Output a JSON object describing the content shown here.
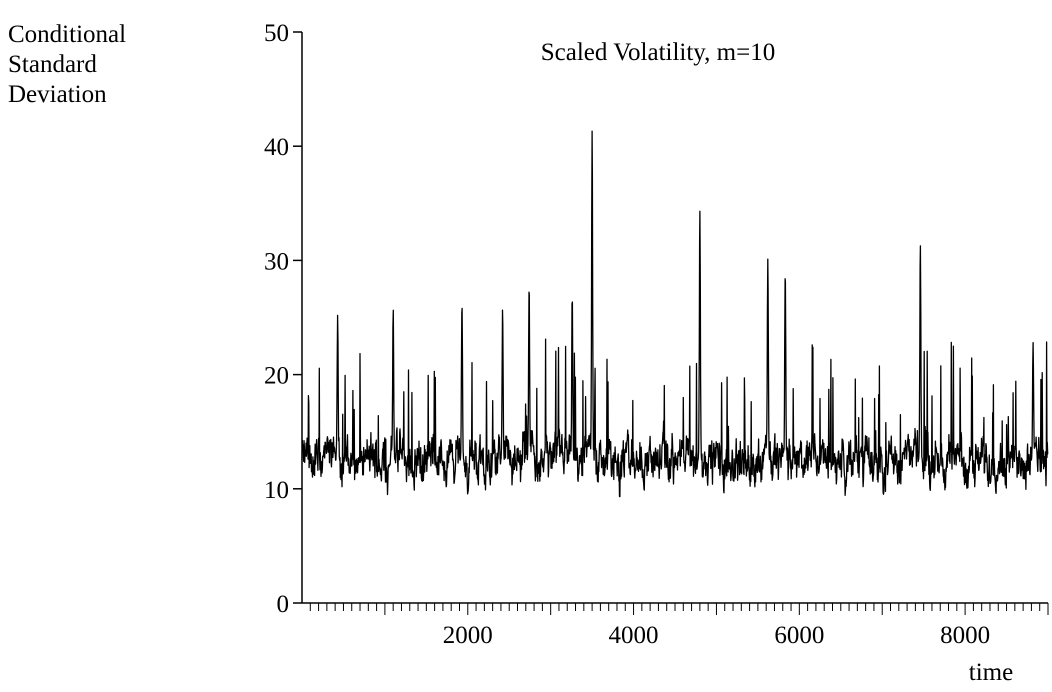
{
  "chart_data": {
    "type": "line",
    "title": "Scaled Volatility, m=10",
    "xlabel": "time",
    "ylabel_lines": [
      "Conditional",
      "Standard",
      "Deviation"
    ],
    "xlim": [
      0,
      9000
    ],
    "ylim": [
      0,
      50
    ],
    "x_ticks": [
      2000,
      4000,
      6000,
      8000
    ],
    "y_ticks": [
      0,
      10,
      20,
      30,
      40,
      50
    ],
    "grid": false,
    "series": [
      {
        "n_points": 9000,
        "baseline": 12.5,
        "min_value": 9.3,
        "peaks": [
          {
            "x": 430,
            "y": 25.2
          },
          {
            "x": 1100,
            "y": 25.8
          },
          {
            "x": 1930,
            "y": 26.4
          },
          {
            "x": 2420,
            "y": 25.9
          },
          {
            "x": 2740,
            "y": 28.0
          },
          {
            "x": 3260,
            "y": 27.1
          },
          {
            "x": 3500,
            "y": 41.5
          },
          {
            "x": 4800,
            "y": 34.5
          },
          {
            "x": 5620,
            "y": 30.2
          },
          {
            "x": 5830,
            "y": 29.2
          },
          {
            "x": 7460,
            "y": 31.6
          },
          {
            "x": 8820,
            "y": 22.8
          }
        ]
      }
    ]
  }
}
